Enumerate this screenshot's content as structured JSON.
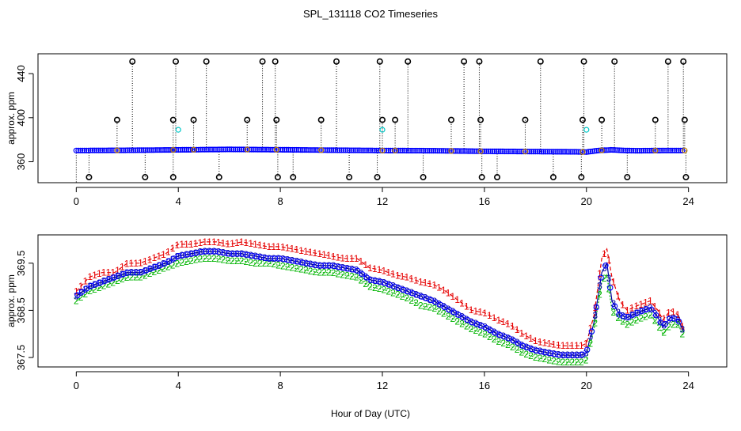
{
  "title": "SPL_131118  CO2 Timeseries",
  "xlabel": "Hour of Day (UTC)",
  "colors": {
    "black": "#000000",
    "blue": "#0000ff",
    "cyan": "#00c8c8",
    "red": "#e60000",
    "green": "#00b400",
    "darkblue": "#0000a0"
  },
  "chart_data": [
    {
      "type": "scatter",
      "name": "raw",
      "ylabel": "approx. ppm",
      "xlim": [
        -1.5,
        25.5
      ],
      "ylim": [
        341,
        458
      ],
      "xticks": [
        0,
        4,
        8,
        12,
        16,
        20,
        24
      ],
      "yticks": [
        360,
        400,
        440
      ],
      "baseline_points": [
        [
          0,
          370.2
        ],
        [
          2,
          370.4
        ],
        [
          4,
          370.8
        ],
        [
          6,
          371.2
        ],
        [
          8,
          370.9
        ],
        [
          10,
          370.5
        ],
        [
          12,
          370.2
        ],
        [
          14,
          370.0
        ],
        [
          16,
          369.5
        ],
        [
          18,
          369.2
        ],
        [
          19.5,
          369.0
        ],
        [
          20,
          368.8
        ],
        [
          20.5,
          370.3
        ],
        [
          21,
          370.8
        ],
        [
          21.5,
          370.2
        ],
        [
          22,
          370.0
        ],
        [
          23,
          370.2
        ],
        [
          23.8,
          370.2
        ]
      ],
      "spikes_high": [
        2.2,
        3.9,
        5.1,
        7.3,
        7.8,
        10.2,
        11.9,
        13.0,
        15.2,
        15.8,
        18.2,
        19.9,
        21.1,
        23.2,
        23.8
      ],
      "spikes_mid": [
        1.6,
        3.8,
        4.6,
        6.7,
        7.85,
        9.6,
        12.0,
        12.5,
        14.7,
        15.85,
        17.6,
        19.85,
        20.6,
        22.7,
        23.85
      ],
      "spikes_low": [
        0.5,
        2.7,
        3.8,
        5.6,
        7.9,
        8.5,
        10.7,
        11.8,
        13.6,
        15.9,
        16.5,
        18.7,
        19.8,
        21.6,
        23.9
      ],
      "cyan_points": [
        [
          4.0,
          389
        ],
        [
          12.0,
          389
        ],
        [
          20.0,
          389
        ]
      ],
      "high_value": 451,
      "mid_value": 398,
      "low_value": 346,
      "marker": "o"
    },
    {
      "type": "line",
      "name": "averaged",
      "ylabel": "approx. ppm",
      "xlim": [
        -1.5,
        25.5
      ],
      "ylim": [
        367.3,
        370.1
      ],
      "xticks": [
        0,
        4,
        8,
        12,
        16,
        20,
        24
      ],
      "yticks": [
        367.5,
        368.5,
        369.5
      ],
      "ytick_labels": [
        "367.5",
        "368.5",
        "369.5"
      ],
      "x": [
        0.0,
        0.5,
        1.0,
        1.5,
        2.0,
        2.5,
        3.0,
        3.5,
        4.0,
        4.5,
        5.0,
        5.5,
        6.0,
        6.5,
        7.0,
        7.5,
        8.0,
        8.5,
        9.0,
        9.5,
        10.0,
        10.5,
        11.0,
        11.5,
        12.0,
        12.5,
        13.0,
        13.5,
        14.0,
        14.5,
        15.0,
        15.5,
        16.0,
        16.5,
        17.0,
        17.5,
        18.0,
        18.5,
        19.0,
        19.5,
        19.8,
        20.0,
        20.3,
        20.6,
        20.8,
        21.0,
        21.3,
        21.6,
        22.0,
        22.5,
        22.8,
        23.0,
        23.3,
        23.6,
        23.8
      ],
      "series": [
        {
          "name": "1",
          "color": "#e60000",
          "values": [
            368.9,
            369.2,
            369.3,
            369.3,
            369.5,
            369.5,
            369.6,
            369.7,
            369.9,
            369.9,
            369.95,
            369.95,
            369.9,
            369.95,
            369.9,
            369.85,
            369.85,
            369.8,
            369.75,
            369.7,
            369.65,
            369.6,
            369.6,
            369.4,
            369.35,
            369.25,
            369.2,
            369.1,
            369.05,
            368.9,
            368.7,
            368.5,
            368.45,
            368.3,
            368.2,
            368.0,
            367.85,
            367.8,
            367.75,
            367.75,
            367.75,
            367.8,
            368.4,
            369.6,
            369.8,
            369.2,
            368.7,
            368.5,
            368.6,
            368.7,
            368.5,
            368.3,
            368.5,
            368.4,
            368.1
          ]
        },
        {
          "name": "2",
          "color": "#00b400",
          "values": [
            368.7,
            368.9,
            369.0,
            369.1,
            369.2,
            369.2,
            369.3,
            369.4,
            369.5,
            369.55,
            369.6,
            369.6,
            369.55,
            369.55,
            369.5,
            369.5,
            369.45,
            369.4,
            369.35,
            369.3,
            369.3,
            369.25,
            369.2,
            369.0,
            368.95,
            368.85,
            368.75,
            368.6,
            368.55,
            368.4,
            368.25,
            368.1,
            368.0,
            367.85,
            367.75,
            367.6,
            367.5,
            367.45,
            367.4,
            367.4,
            367.4,
            367.45,
            368.1,
            369.1,
            369.25,
            368.5,
            368.3,
            368.2,
            368.3,
            368.4,
            368.2,
            368.0,
            368.2,
            368.2,
            367.95
          ]
        },
        {
          "name": "3",
          "color": "#0000a0",
          "values": [
            368.8,
            369.0,
            369.1,
            369.2,
            369.3,
            369.3,
            369.4,
            369.5,
            369.65,
            369.7,
            369.75,
            369.75,
            369.7,
            369.7,
            369.65,
            369.6,
            369.6,
            369.55,
            369.5,
            369.45,
            369.45,
            369.4,
            369.35,
            369.15,
            369.1,
            369.0,
            368.9,
            368.8,
            368.7,
            368.55,
            368.4,
            368.25,
            368.15,
            368.0,
            367.9,
            367.75,
            367.65,
            367.6,
            367.55,
            367.55,
            367.55,
            367.6,
            368.25,
            369.3,
            369.5,
            368.7,
            368.4,
            368.35,
            368.45,
            368.55,
            368.35,
            368.15,
            368.35,
            368.3,
            368.05
          ]
        }
      ]
    }
  ]
}
